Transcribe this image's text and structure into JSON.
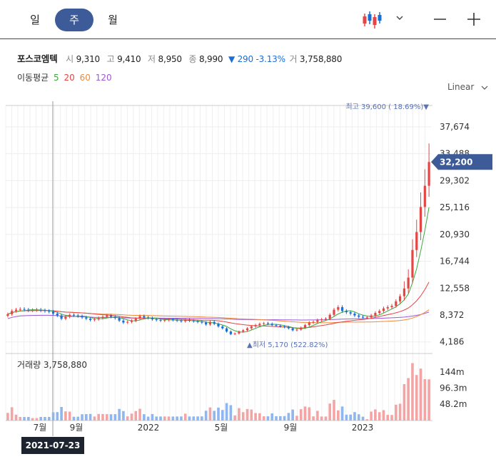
{
  "toolbar": {
    "tabs": [
      {
        "label": "일",
        "active": false
      },
      {
        "label": "주",
        "active": true
      },
      {
        "label": "월",
        "active": false
      }
    ],
    "chart_type_icon": "candlestick-icon",
    "dropdown_icon": "chevron-down-icon",
    "zoom_out_icon": "minus-icon",
    "zoom_in_icon": "plus-icon",
    "accent_color": "#3d5a99"
  },
  "stock": {
    "name": "포스코엠텍",
    "open_label": "시",
    "open": "9,310",
    "high_label": "고",
    "high": "9,410",
    "low_label": "저",
    "low": "8,950",
    "close_label": "종",
    "close": "8,990",
    "change_arrow": "▼",
    "change": "290",
    "change_pct": "-3.13%",
    "volume_label": "거",
    "volume": "3,758,880"
  },
  "moving_average": {
    "label": "이동평균",
    "periods": [
      {
        "label": "5",
        "color": "#3aa93a"
      },
      {
        "label": "20",
        "color": "#e54545"
      },
      {
        "label": "60",
        "color": "#f08a3a"
      },
      {
        "label": "120",
        "color": "#9b59d6"
      }
    ]
  },
  "scale_select": "Linear",
  "chart_data": {
    "type": "candlestick",
    "y_ticks": [
      "37,674",
      "33,488",
      "29,302",
      "25,116",
      "20,930",
      "16,744",
      "12,558",
      "8,372",
      "4,186"
    ],
    "ylim": [
      2600,
      41000
    ],
    "x_labels": [
      "7월",
      "9월",
      "2022",
      "5월",
      "9월",
      "2023"
    ],
    "current_price_label": "32,200",
    "high_annotation": "최고 39,600 ( 18.69%)▼",
    "low_annotation": "▲최저 5,170 (522.82%)",
    "weekly_close": [
      8500,
      9000,
      9200,
      9300,
      9200,
      9100,
      9150,
      9200,
      9100,
      9000,
      8900,
      8600,
      8300,
      7800,
      8100,
      8400,
      8300,
      8200,
      8000,
      7800,
      7600,
      7700,
      7900,
      8100,
      8300,
      8100,
      7900,
      7500,
      7200,
      7300,
      7500,
      7800,
      8200,
      8000,
      7900,
      7700,
      7600,
      7500,
      7600,
      7700,
      7600,
      7500,
      7400,
      7600,
      7500,
      7400,
      7300,
      7200,
      6900,
      7300,
      7000,
      6600,
      6300,
      5800,
      5400,
      5500,
      5800,
      6000,
      6300,
      6600,
      6800,
      7000,
      7100,
      7000,
      6800,
      6700,
      6600,
      6500,
      6300,
      6000,
      6100,
      6400,
      6800,
      7200,
      7300,
      7600,
      7700,
      7800,
      8400,
      9200,
      9600,
      9000,
      8800,
      8600,
      8300,
      8100,
      8000,
      8000,
      8300,
      8700,
      9000,
      9400,
      9600,
      9800,
      10500,
      11300,
      12500,
      14200,
      18500,
      21300,
      25200,
      28500,
      32200
    ],
    "volume": {
      "label": "거래량",
      "last": "3,758,880",
      "y_ticks": [
        "144m",
        "96.3m",
        "48.2m"
      ],
      "ylim": [
        0,
        190
      ]
    }
  },
  "date_badge": "2021-07-23"
}
